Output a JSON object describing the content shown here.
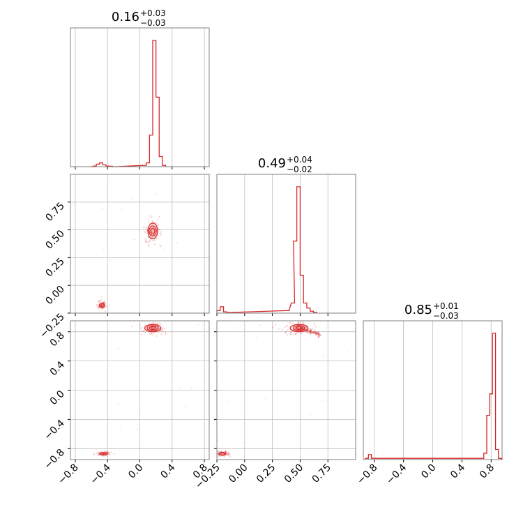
{
  "colors": {
    "series": "#d62728",
    "grid": "#bdbdbd",
    "frame": "#7f7f7f"
  },
  "titles": [
    {
      "value": "0.16",
      "plus": "+0.03",
      "minus": "−0.03"
    },
    {
      "value": "0.49",
      "plus": "+0.04",
      "minus": "−0.02"
    },
    {
      "value": "0.85",
      "plus": "+0.01",
      "minus": "−0.03"
    }
  ],
  "chart_data": {
    "type": "corner",
    "grid": true,
    "parameters": [
      {
        "range": [
          -0.86,
          0.86
        ],
        "ticks": [
          -0.8,
          -0.4,
          0.0,
          0.4,
          0.8
        ],
        "tick_labels": [
          "−0.8",
          "−0.4",
          "0.0",
          "0.4",
          "0.8"
        ]
      },
      {
        "range": [
          -0.25,
          1.0
        ],
        "ticks": [
          -0.25,
          0.0,
          0.25,
          0.5,
          0.75
        ],
        "tick_labels": [
          "−0.25",
          "0.00",
          "0.25",
          "0.50",
          "0.75"
        ]
      },
      {
        "range": [
          -0.95,
          0.95
        ],
        "ticks": [
          -0.8,
          -0.4,
          0.0,
          0.4,
          0.8
        ],
        "tick_labels": [
          "−0.8",
          "−0.4",
          "0.0",
          "0.4",
          "0.8"
        ]
      }
    ],
    "histograms": [
      {
        "parameter": 0,
        "bins": [
          [
            -0.62,
            0
          ],
          [
            -0.58,
            0.005
          ],
          [
            -0.54,
            0.02
          ],
          [
            -0.5,
            0.03
          ],
          [
            -0.46,
            0.015
          ],
          [
            -0.42,
            0.005
          ],
          [
            -0.38,
            0.003
          ],
          [
            -0.34,
            0
          ],
          [
            0.04,
            0.01
          ],
          [
            0.08,
            0.03
          ],
          [
            0.12,
            0.25
          ],
          [
            0.16,
            1.0
          ],
          [
            0.2,
            0.55
          ],
          [
            0.24,
            0.08
          ],
          [
            0.28,
            0.01
          ]
        ],
        "bin_width": 0.04
      },
      {
        "parameter": 1,
        "bins": [
          [
            -0.25,
            0.02
          ],
          [
            -0.22,
            0.05
          ],
          [
            -0.19,
            0.01
          ],
          [
            -0.16,
            0.005
          ],
          [
            0.37,
            0.02
          ],
          [
            0.42,
            0.08
          ],
          [
            0.44,
            0.57
          ],
          [
            0.47,
            1.0
          ],
          [
            0.5,
            0.3
          ],
          [
            0.53,
            0.08
          ],
          [
            0.56,
            0.04
          ],
          [
            0.59,
            0.015
          ],
          [
            0.62,
            0.005
          ]
        ],
        "bin_width": 0.03
      },
      {
        "parameter": 2,
        "bins": [
          [
            -0.92,
            0.01
          ],
          [
            -0.88,
            0.04
          ],
          [
            -0.84,
            0.01
          ],
          [
            0.66,
            0.01
          ],
          [
            0.7,
            0.05
          ],
          [
            0.74,
            0.35
          ],
          [
            0.78,
            0.52
          ],
          [
            0.82,
            1.0
          ],
          [
            0.86,
            0.08
          ],
          [
            0.9,
            0.01
          ]
        ],
        "bin_width": 0.04
      }
    ],
    "scatter_2d": [
      {
        "x_param": 0,
        "y_param": 1,
        "modes": [
          {
            "center": [
              0.16,
              0.49
            ],
            "contours": [
              [
                0.025,
                0.025
              ],
              [
                0.045,
                0.045
              ],
              [
                0.06,
                0.07
              ]
            ]
          },
          {
            "center": [
              -0.47,
              -0.18
            ],
            "contours": [
              [
                0.03,
                0.02
              ]
            ]
          }
        ]
      },
      {
        "x_param": 0,
        "y_param": 2,
        "modes": [
          {
            "center": [
              0.16,
              0.85
            ],
            "contours": [
              [
                0.04,
                0.02
              ],
              [
                0.07,
                0.035
              ],
              [
                0.1,
                0.05
              ]
            ]
          },
          {
            "center": [
              -0.45,
              -0.87
            ],
            "contours": [
              [
                0.05,
                0.015
              ]
            ]
          }
        ]
      },
      {
        "x_param": 1,
        "y_param": 2,
        "modes": [
          {
            "center": [
              0.49,
              0.85
            ],
            "contours": [
              [
                0.03,
                0.02
              ],
              [
                0.05,
                0.035
              ],
              [
                0.08,
                0.05
              ]
            ]
          },
          {
            "center": [
              -0.2,
              -0.87
            ],
            "contours": [
              [
                0.03,
                0.02
              ]
            ]
          }
        ],
        "tail": {
          "from": [
            0.5,
            0.85
          ],
          "to": [
            0.68,
            0.76
          ]
        }
      }
    ]
  }
}
